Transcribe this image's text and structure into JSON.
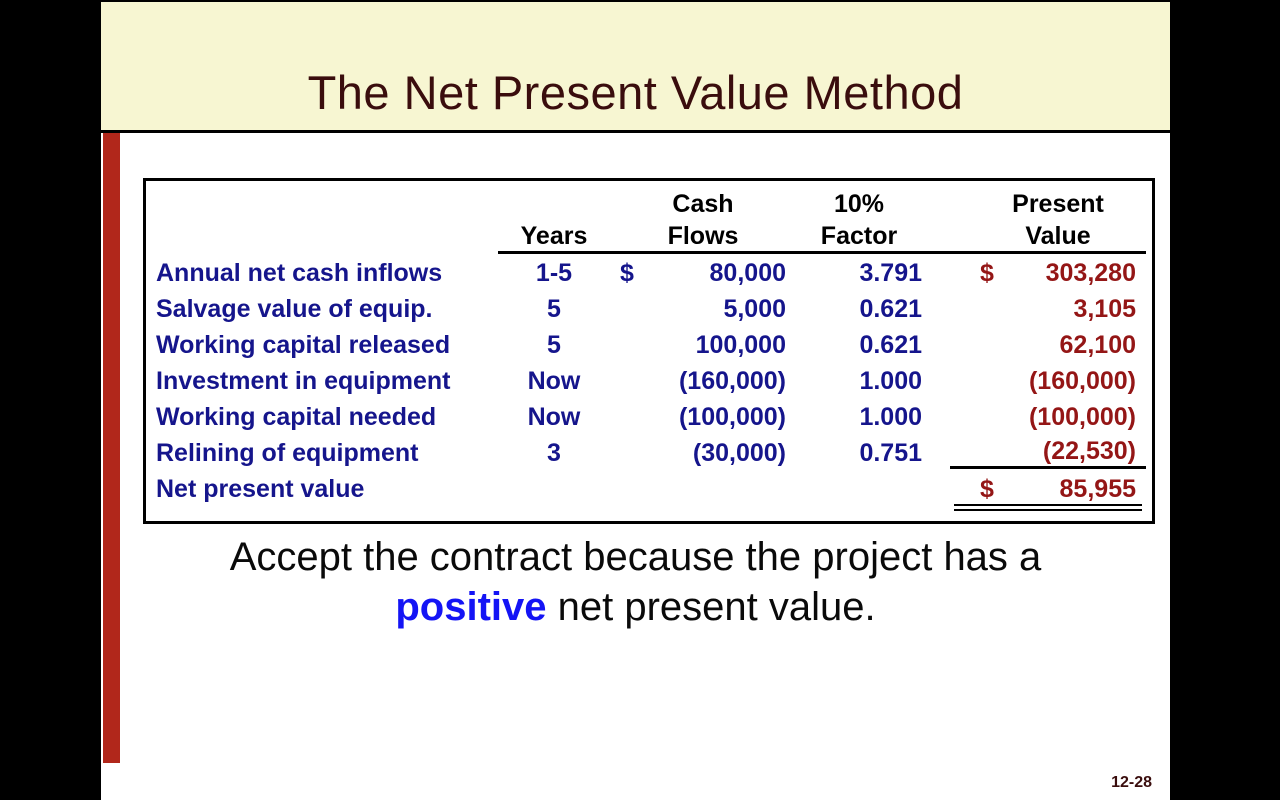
{
  "slide": {
    "title": "The Net Present Value Method",
    "page_number": "12-28"
  },
  "colors": {
    "background_bars": "#000000",
    "title_band": "#f7f6d2",
    "title_text": "#3a0d0d",
    "accent_strip": "#b1271b",
    "table_navy": "#15158c",
    "present_value_red": "#941616",
    "highlight_blue": "#1414f5"
  },
  "table": {
    "headers": {
      "years_line1": "",
      "years_line2": "Years",
      "cash_line1": "Cash",
      "cash_line2": "Flows",
      "factor_line1": "10%",
      "factor_line2": "Factor",
      "pv_line1": "Present",
      "pv_line2": "Value"
    },
    "rows": [
      {
        "label": "Annual net cash inflows",
        "years": "1-5",
        "cash_dollar": "$",
        "cash_flow": "80,000",
        "factor": "3.791",
        "pv_dollar": "$",
        "present_value": "303,280"
      },
      {
        "label": "Salvage value of equip.",
        "years": "5",
        "cash_dollar": "",
        "cash_flow": "5,000",
        "factor": "0.621",
        "pv_dollar": "",
        "present_value": "3,105"
      },
      {
        "label": "Working capital released",
        "years": "5",
        "cash_dollar": "",
        "cash_flow": "100,000",
        "factor": "0.621",
        "pv_dollar": "",
        "present_value": "62,100"
      },
      {
        "label": "Investment in equipment",
        "years": "Now",
        "cash_dollar": "",
        "cash_flow": "(160,000)",
        "factor": "1.000",
        "pv_dollar": "",
        "present_value": "(160,000)"
      },
      {
        "label": "Working capital needed",
        "years": "Now",
        "cash_dollar": "",
        "cash_flow": "(100,000)",
        "factor": "1.000",
        "pv_dollar": "",
        "present_value": "(100,000)"
      },
      {
        "label": "Relining of equipment",
        "years": "3",
        "cash_dollar": "",
        "cash_flow": "(30,000)",
        "factor": "0.751",
        "pv_dollar": "",
        "present_value": "(22,530)"
      }
    ],
    "total_row": {
      "label": "Net present value",
      "pv_dollar": "$",
      "present_value": "85,955"
    }
  },
  "caption": {
    "line1": "Accept the contract because the project has a",
    "highlight": "positive",
    "line2_rest": " net present value."
  }
}
